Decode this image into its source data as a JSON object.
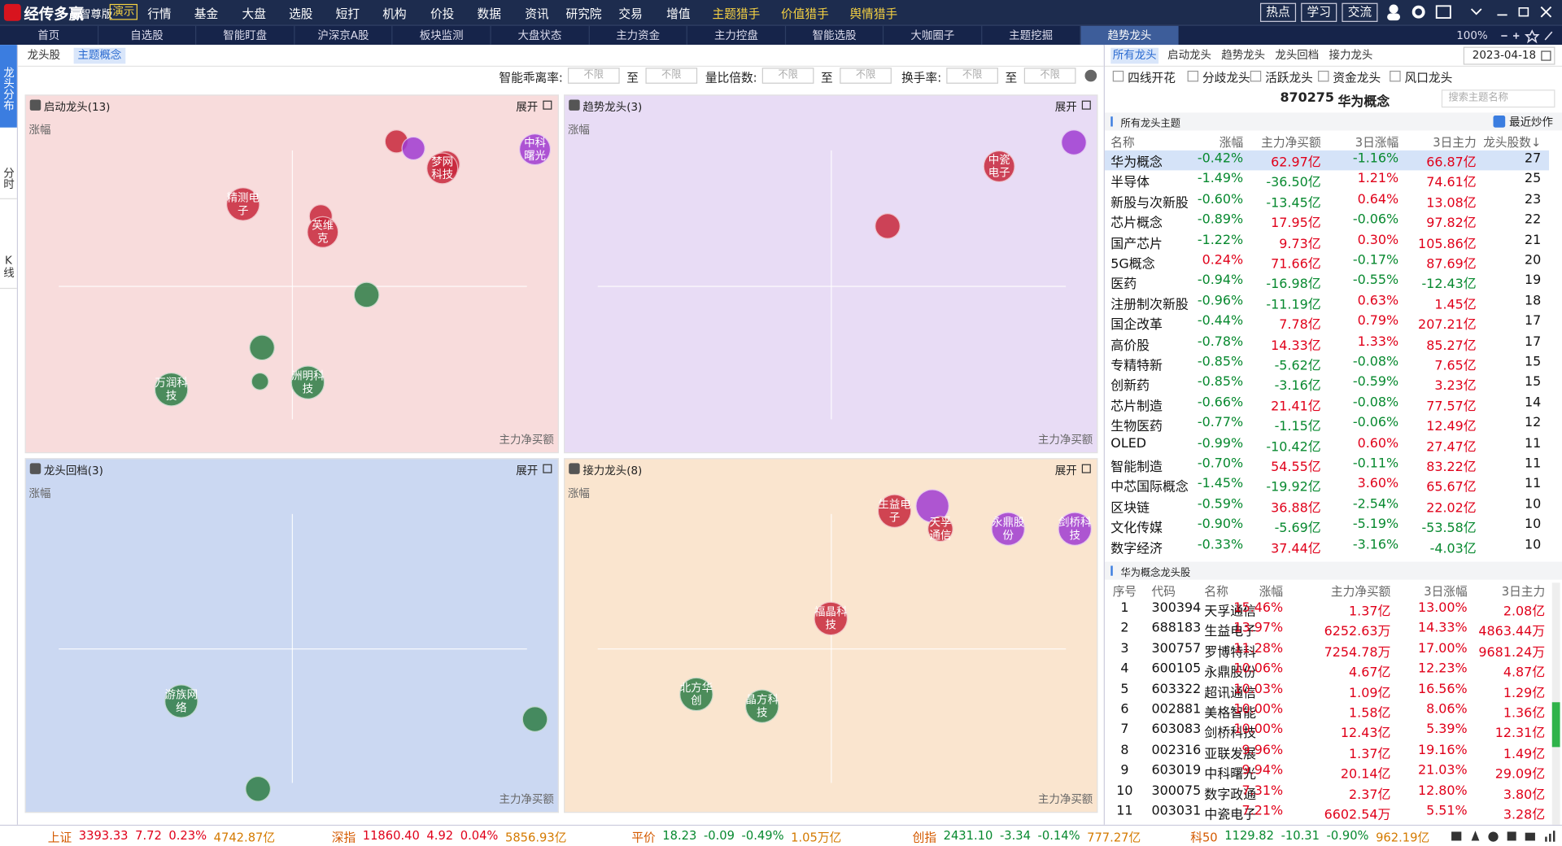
{
  "top_menu": {
    "logo": "经传多赢",
    "edition": "智尊版",
    "demo": "演示",
    "items": [
      "行情",
      "基金",
      "大盘",
      "选股",
      "短打",
      "机构",
      "价投",
      "数据",
      "资讯",
      "研究院",
      "交易",
      "增值",
      "主题猎手",
      "价值猎手",
      "舆情猎手"
    ],
    "highlight_from": 12,
    "right_buttons": [
      "热点",
      "学习",
      "交流"
    ]
  },
  "nav_tabs": {
    "items": [
      "首页",
      "自选股",
      "智能盯盘",
      "沪深京A股",
      "板块监测",
      "大盘状态",
      "主力资金",
      "主力控盘",
      "智能选股",
      "大咖圈子",
      "主题挖掘",
      "趋势龙头"
    ],
    "active": 11,
    "zoom": "100%"
  },
  "side_tabs": {
    "items": [
      "龙头分布",
      "分时",
      "K线"
    ],
    "active": 0
  },
  "sub_tabs": {
    "items": [
      "龙头股",
      "主题概念"
    ],
    "active": 1
  },
  "filters": [
    {
      "label": "智能乖离率:",
      "from": "不限",
      "sep": "至",
      "to": "不限"
    },
    {
      "label": "量比倍数:",
      "from": "不限",
      "sep": "至",
      "to": "不限"
    },
    {
      "label": "换手率:",
      "from": "不限",
      "sep": "至",
      "to": "不限"
    }
  ],
  "quadrants": [
    {
      "title": "启动龙头(13)",
      "expand": "展开",
      "y_label": "涨幅",
      "x_label": "主力净买额",
      "background": "#f8dcdc",
      "bubbles": [
        {
          "label": null,
          "color": "#c8283c"
        },
        {
          "label": null,
          "color": "#a03cd2"
        },
        {
          "label": null,
          "color": "#c8283c"
        },
        {
          "label": "梦网科技",
          "color": "#c8283c"
        },
        {
          "label": "中科曙光",
          "color": "#a03cd2"
        },
        {
          "label": "精测电子",
          "color": "#c8283c"
        },
        {
          "label": null,
          "color": "#c8283c"
        },
        {
          "label": "英维克",
          "color": "#c8283c"
        },
        {
          "label": null,
          "color": "#2e7d46"
        },
        {
          "label": null,
          "color": "#2e7d46"
        },
        {
          "label": null,
          "color": "#2e7d46"
        },
        {
          "label": "洲明科技",
          "color": "#2e7d46"
        },
        {
          "label": "万润科技",
          "color": "#2e7d46"
        }
      ]
    },
    {
      "title": "趋势龙头(3)",
      "expand": "展开",
      "y_label": "涨幅",
      "x_label": "主力净买额",
      "background": "#e8dcf5",
      "bubbles": [
        {
          "label": "中瓷电子",
          "color": "#c8283c"
        },
        {
          "label": null,
          "color": "#c8283c"
        },
        {
          "label": null,
          "color": "#a03cd2"
        }
      ]
    },
    {
      "title": "龙头回档(3)",
      "expand": "展开",
      "y_label": "涨幅",
      "x_label": "主力净买额",
      "background": "#cbd8f2",
      "bubbles": [
        {
          "label": "游族网络",
          "color": "#2e7d46"
        },
        {
          "label": null,
          "color": "#2e7d46"
        },
        {
          "label": null,
          "color": "#2e7d46"
        }
      ]
    },
    {
      "title": "接力龙头(8)",
      "expand": "展开",
      "y_label": "涨幅",
      "x_label": "主力净买额",
      "background": "#fae5cf",
      "bubbles": [
        {
          "label": "生益电子",
          "color": "#c8283c"
        },
        {
          "label": "天孚通信",
          "color": "#c8283c"
        },
        {
          "label": null,
          "color": "#a03cd2"
        },
        {
          "label": "永鼎股份",
          "color": "#a03cd2"
        },
        {
          "label": "剑桥科技",
          "color": "#a03cd2"
        },
        {
          "label": "福晶科技",
          "color": "#c8283c"
        },
        {
          "label": "北方华创",
          "color": "#2e7d46"
        },
        {
          "label": "晶方科技",
          "color": "#2e7d46"
        }
      ]
    }
  ],
  "right_panel": {
    "tabs": [
      "所有龙头",
      "启动龙头",
      "趋势龙头",
      "龙头回档",
      "接力龙头"
    ],
    "active_tab": 0,
    "date": "2023-04-18",
    "checkboxes": [
      "四线开花",
      "分歧龙头",
      "活跃龙头",
      "资金龙头",
      "风口龙头"
    ],
    "theme_code": "870275",
    "theme_name": "华为概念",
    "search_placeholder": "搜索主题名称",
    "themes_section": "所有龙头主题",
    "recent_checkbox": "最近炒作",
    "themes_table": {
      "columns": [
        "名称",
        "涨幅",
        "主力净买额",
        "3日涨幅",
        "3日主力",
        "龙头股数↓"
      ],
      "rows": [
        [
          "华为概念",
          "-0.42%",
          "62.97亿",
          "-1.16%",
          "66.87亿",
          27
        ],
        [
          "半导体",
          "-1.49%",
          "-36.50亿",
          "1.21%",
          "74.61亿",
          25
        ],
        [
          "新股与次新股",
          "-0.60%",
          "-13.45亿",
          "0.64%",
          "13.08亿",
          23
        ],
        [
          "芯片概念",
          "-0.89%",
          "17.95亿",
          "-0.06%",
          "97.82亿",
          22
        ],
        [
          "国产芯片",
          "-1.22%",
          "9.73亿",
          "0.30%",
          "105.86亿",
          21
        ],
        [
          "5G概念",
          "0.24%",
          "71.66亿",
          "-0.17%",
          "87.69亿",
          20
        ],
        [
          "医药",
          "-0.94%",
          "-16.98亿",
          "-0.55%",
          "-12.43亿",
          19
        ],
        [
          "注册制次新股",
          "-0.96%",
          "-11.19亿",
          "0.63%",
          "1.45亿",
          18
        ],
        [
          "国企改革",
          "-0.44%",
          "7.78亿",
          "0.79%",
          "207.21亿",
          17
        ],
        [
          "高价股",
          "-0.78%",
          "14.33亿",
          "1.33%",
          "85.27亿",
          17
        ],
        [
          "专精特新",
          "-0.85%",
          "-5.62亿",
          "-0.08%",
          "7.65亿",
          15
        ],
        [
          "创新药",
          "-0.85%",
          "-3.16亿",
          "-0.59%",
          "3.23亿",
          15
        ],
        [
          "芯片制造",
          "-0.66%",
          "21.41亿",
          "-0.08%",
          "77.57亿",
          14
        ],
        [
          "生物医药",
          "-0.77%",
          "-1.15亿",
          "-0.06%",
          "12.49亿",
          12
        ],
        [
          "OLED",
          "-0.99%",
          "-10.42亿",
          "0.60%",
          "27.47亿",
          11
        ],
        [
          "智能制造",
          "-0.70%",
          "54.55亿",
          "-0.11%",
          "83.22亿",
          11
        ],
        [
          "中芯国际概念",
          "-1.45%",
          "-19.92亿",
          "3.60%",
          "65.67亿",
          11
        ],
        [
          "区块链",
          "-0.59%",
          "36.88亿",
          "-2.54%",
          "22.02亿",
          10
        ],
        [
          "文化传媒",
          "-0.90%",
          "-5.69亿",
          "-5.19%",
          "-53.58亿",
          10
        ],
        [
          "数字经济",
          "-0.33%",
          "37.44亿",
          "-3.16%",
          "-4.03亿",
          10
        ]
      ]
    },
    "stocks_section": "华为概念龙头股",
    "stocks_table": {
      "columns": [
        "序号",
        "代码",
        "名称",
        "涨幅",
        "主力净买额",
        "3日涨幅",
        "3日主力"
      ],
      "rows": [
        [
          1,
          "300394",
          "天孚通信",
          "15.46%",
          "1.37亿",
          "13.00%",
          "2.08亿"
        ],
        [
          2,
          "688183",
          "生益电子",
          "13.97%",
          "6252.63万",
          "14.33%",
          "4863.44万"
        ],
        [
          3,
          "300757",
          "罗博特科",
          "11.28%",
          "7254.78万",
          "17.00%",
          "9681.24万"
        ],
        [
          4,
          "600105",
          "永鼎股份",
          "10.06%",
          "4.67亿",
          "12.23%",
          "4.87亿"
        ],
        [
          5,
          "603322",
          "超讯通信",
          "10.03%",
          "1.09亿",
          "16.56%",
          "1.29亿"
        ],
        [
          6,
          "002881",
          "美格智能",
          "10.00%",
          "1.58亿",
          "8.06%",
          "1.36亿"
        ],
        [
          7,
          "603083",
          "剑桥科技",
          "10.00%",
          "12.43亿",
          "5.39%",
          "12.31亿"
        ],
        [
          8,
          "002316",
          "亚联发展",
          "9.96%",
          "1.37亿",
          "19.16%",
          "1.49亿"
        ],
        [
          9,
          "603019",
          "中科曙光",
          "9.94%",
          "20.14亿",
          "21.03%",
          "29.09亿"
        ],
        [
          10,
          "300075",
          "数字政通",
          "7.31%",
          "2.37亿",
          "12.80%",
          "3.80亿"
        ],
        [
          11,
          "003031",
          "中瓷电子",
          "7.21%",
          "6602.54万",
          "5.51%",
          "3.28亿"
        ]
      ]
    }
  },
  "status_bar": [
    [
      "上证",
      "3393.33",
      "7.72",
      "0.23%",
      "4742.87亿"
    ],
    [
      "深指",
      "11860.40",
      "4.92",
      "0.04%",
      "5856.93亿"
    ],
    [
      "平价",
      "18.23",
      "-0.09",
      "-0.49%",
      "1.05万亿"
    ],
    [
      "创指",
      "2431.10",
      "-3.34",
      "-0.14%",
      "777.27亿"
    ],
    [
      "科50",
      "1129.82",
      "-10.31",
      "-0.90%",
      "962.19亿"
    ]
  ]
}
